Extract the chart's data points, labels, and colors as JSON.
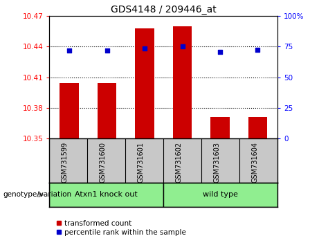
{
  "title": "GDS4148 / 209446_at",
  "samples": [
    "GSM731599",
    "GSM731600",
    "GSM731601",
    "GSM731602",
    "GSM731603",
    "GSM731604"
  ],
  "bar_values": [
    10.404,
    10.404,
    10.458,
    10.46,
    10.371,
    10.371
  ],
  "dot_values": [
    10.436,
    10.436,
    10.438,
    10.44,
    10.435,
    10.437
  ],
  "ylim_left": [
    10.35,
    10.47
  ],
  "ylim_right": [
    0,
    100
  ],
  "yticks_left": [
    10.35,
    10.38,
    10.41,
    10.44,
    10.47
  ],
  "yticks_right": [
    0,
    25,
    50,
    75,
    100
  ],
  "ytick_labels_left": [
    "10.35",
    "10.38",
    "10.41",
    "10.44",
    "10.47"
  ],
  "ytick_labels_right": [
    "0",
    "25",
    "50",
    "75",
    "100%"
  ],
  "hlines": [
    10.38,
    10.41,
    10.44
  ],
  "bar_color": "#cc0000",
  "dot_color": "#0000cc",
  "group1_label": "Atxn1 knock out",
  "group2_label": "wild type",
  "group_bg_color": "#90ee90",
  "tick_area_bg": "#c8c8c8",
  "genotype_label": "genotype/variation",
  "legend_items": [
    "transformed count",
    "percentile rank within the sample"
  ],
  "legend_colors": [
    "#cc0000",
    "#0000cc"
  ],
  "bar_width": 0.5
}
